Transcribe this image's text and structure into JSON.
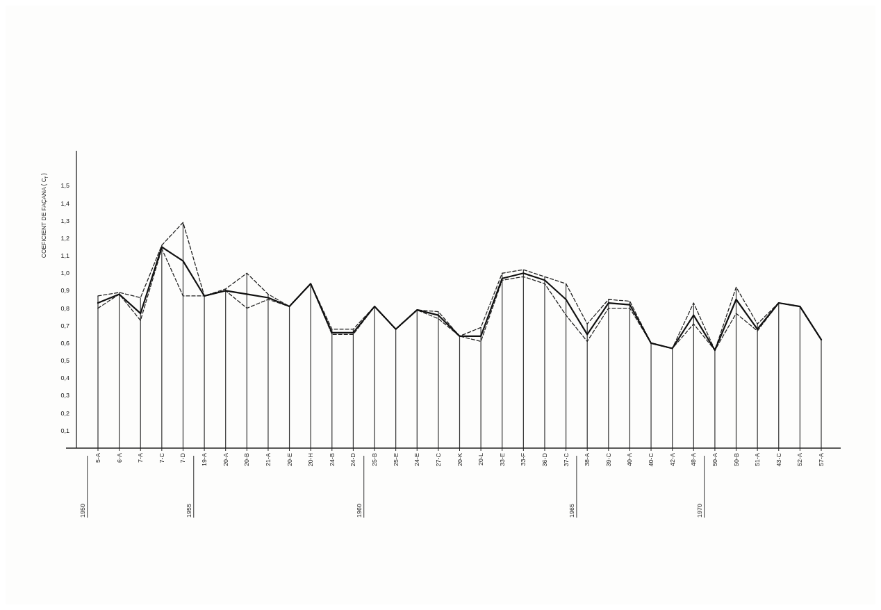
{
  "chart_data": {
    "type": "line",
    "ylabel": "COEFICIENT DE FAÇANA ( C$_{f}$ )",
    "categories": [
      "5-A",
      "6-A",
      "7-A",
      "7-C",
      "7-D",
      "19-A",
      "20-A",
      "20-B",
      "21-A",
      "20-E",
      "20-H",
      "24-B",
      "24-D",
      "25-B",
      "25-E",
      "24-E",
      "27-C",
      "20-K",
      "20-L",
      "33-E",
      "33-F",
      "36-D",
      "37-C",
      "38-A",
      "39-C",
      "40-A",
      "40-C",
      "42-A",
      "48-A",
      "50-A",
      "50-B",
      "51-A",
      "43-C",
      "52-A",
      "57-A"
    ],
    "series": [
      {
        "type": "bar",
        "color": "#333333",
        "values": [
          0.87,
          0.89,
          0.86,
          1.16,
          1.29,
          0.87,
          0.91,
          1.0,
          0.88,
          0.81,
          0.94,
          0.68,
          0.68,
          0.81,
          0.68,
          0.79,
          0.78,
          0.64,
          0.69,
          1.0,
          1.02,
          0.98,
          0.94,
          0.71,
          0.85,
          0.84,
          0.6,
          0.57,
          0.83,
          0.56,
          0.92,
          0.71,
          0.83,
          0.81,
          0.62
        ]
      },
      {
        "color": "#222222",
        "line_style": "dashed",
        "values": [
          0.87,
          0.89,
          0.86,
          1.16,
          1.29,
          0.87,
          0.91,
          1.0,
          0.88,
          0.81,
          0.94,
          0.68,
          0.68,
          0.81,
          0.68,
          0.79,
          0.78,
          0.64,
          0.69,
          1.0,
          1.02,
          0.98,
          0.94,
          0.71,
          0.85,
          0.84,
          0.6,
          0.57,
          0.83,
          0.56,
          0.92,
          0.71,
          0.83,
          0.81,
          0.62
        ]
      },
      {
        "color": "#222222",
        "line_style": "dashed",
        "values": [
          0.8,
          0.88,
          0.73,
          1.14,
          0.87,
          0.87,
          0.9,
          0.8,
          0.85,
          0.81,
          0.94,
          0.65,
          0.65,
          0.81,
          0.68,
          0.79,
          0.74,
          0.64,
          0.61,
          0.96,
          0.98,
          0.94,
          0.76,
          0.61,
          0.8,
          0.8,
          0.6,
          0.57,
          0.71,
          0.56,
          0.77,
          0.67,
          0.83,
          0.81,
          0.62
        ]
      },
      {
        "color": "#111111",
        "line_style": "solid",
        "values": [
          0.83,
          0.88,
          0.77,
          1.15,
          1.07,
          0.87,
          0.9,
          0.88,
          0.86,
          0.81,
          0.94,
          0.66,
          0.66,
          0.81,
          0.68,
          0.79,
          0.76,
          0.64,
          0.64,
          0.97,
          1.0,
          0.96,
          0.85,
          0.65,
          0.83,
          0.82,
          0.6,
          0.57,
          0.76,
          0.56,
          0.85,
          0.68,
          0.83,
          0.81,
          0.62
        ]
      }
    ],
    "ylim": [
      0,
      1.7
    ],
    "yticks": [
      {
        "value": 0.1,
        "label": "0,1"
      },
      {
        "value": 0.2,
        "label": "0,2"
      },
      {
        "value": 0.3,
        "label": "0,3"
      },
      {
        "value": 0.4,
        "label": "0,4"
      },
      {
        "value": 0.5,
        "label": "0,5"
      },
      {
        "value": 0.6,
        "label": "0,6"
      },
      {
        "value": 0.7,
        "label": "0,7"
      },
      {
        "value": 0.8,
        "label": "0,8"
      },
      {
        "value": 0.9,
        "label": "0,9"
      },
      {
        "value": 1.0,
        "label": "1,0"
      },
      {
        "value": 1.1,
        "label": "1,1"
      },
      {
        "value": 1.2,
        "label": "1,2"
      },
      {
        "value": 1.3,
        "label": "1,3"
      },
      {
        "value": 1.4,
        "label": "1,4"
      },
      {
        "value": 1.5,
        "label": "1,5"
      }
    ],
    "annotations": [
      "1950",
      "1955",
      "1960",
      "1965",
      "1970"
    ]
  }
}
